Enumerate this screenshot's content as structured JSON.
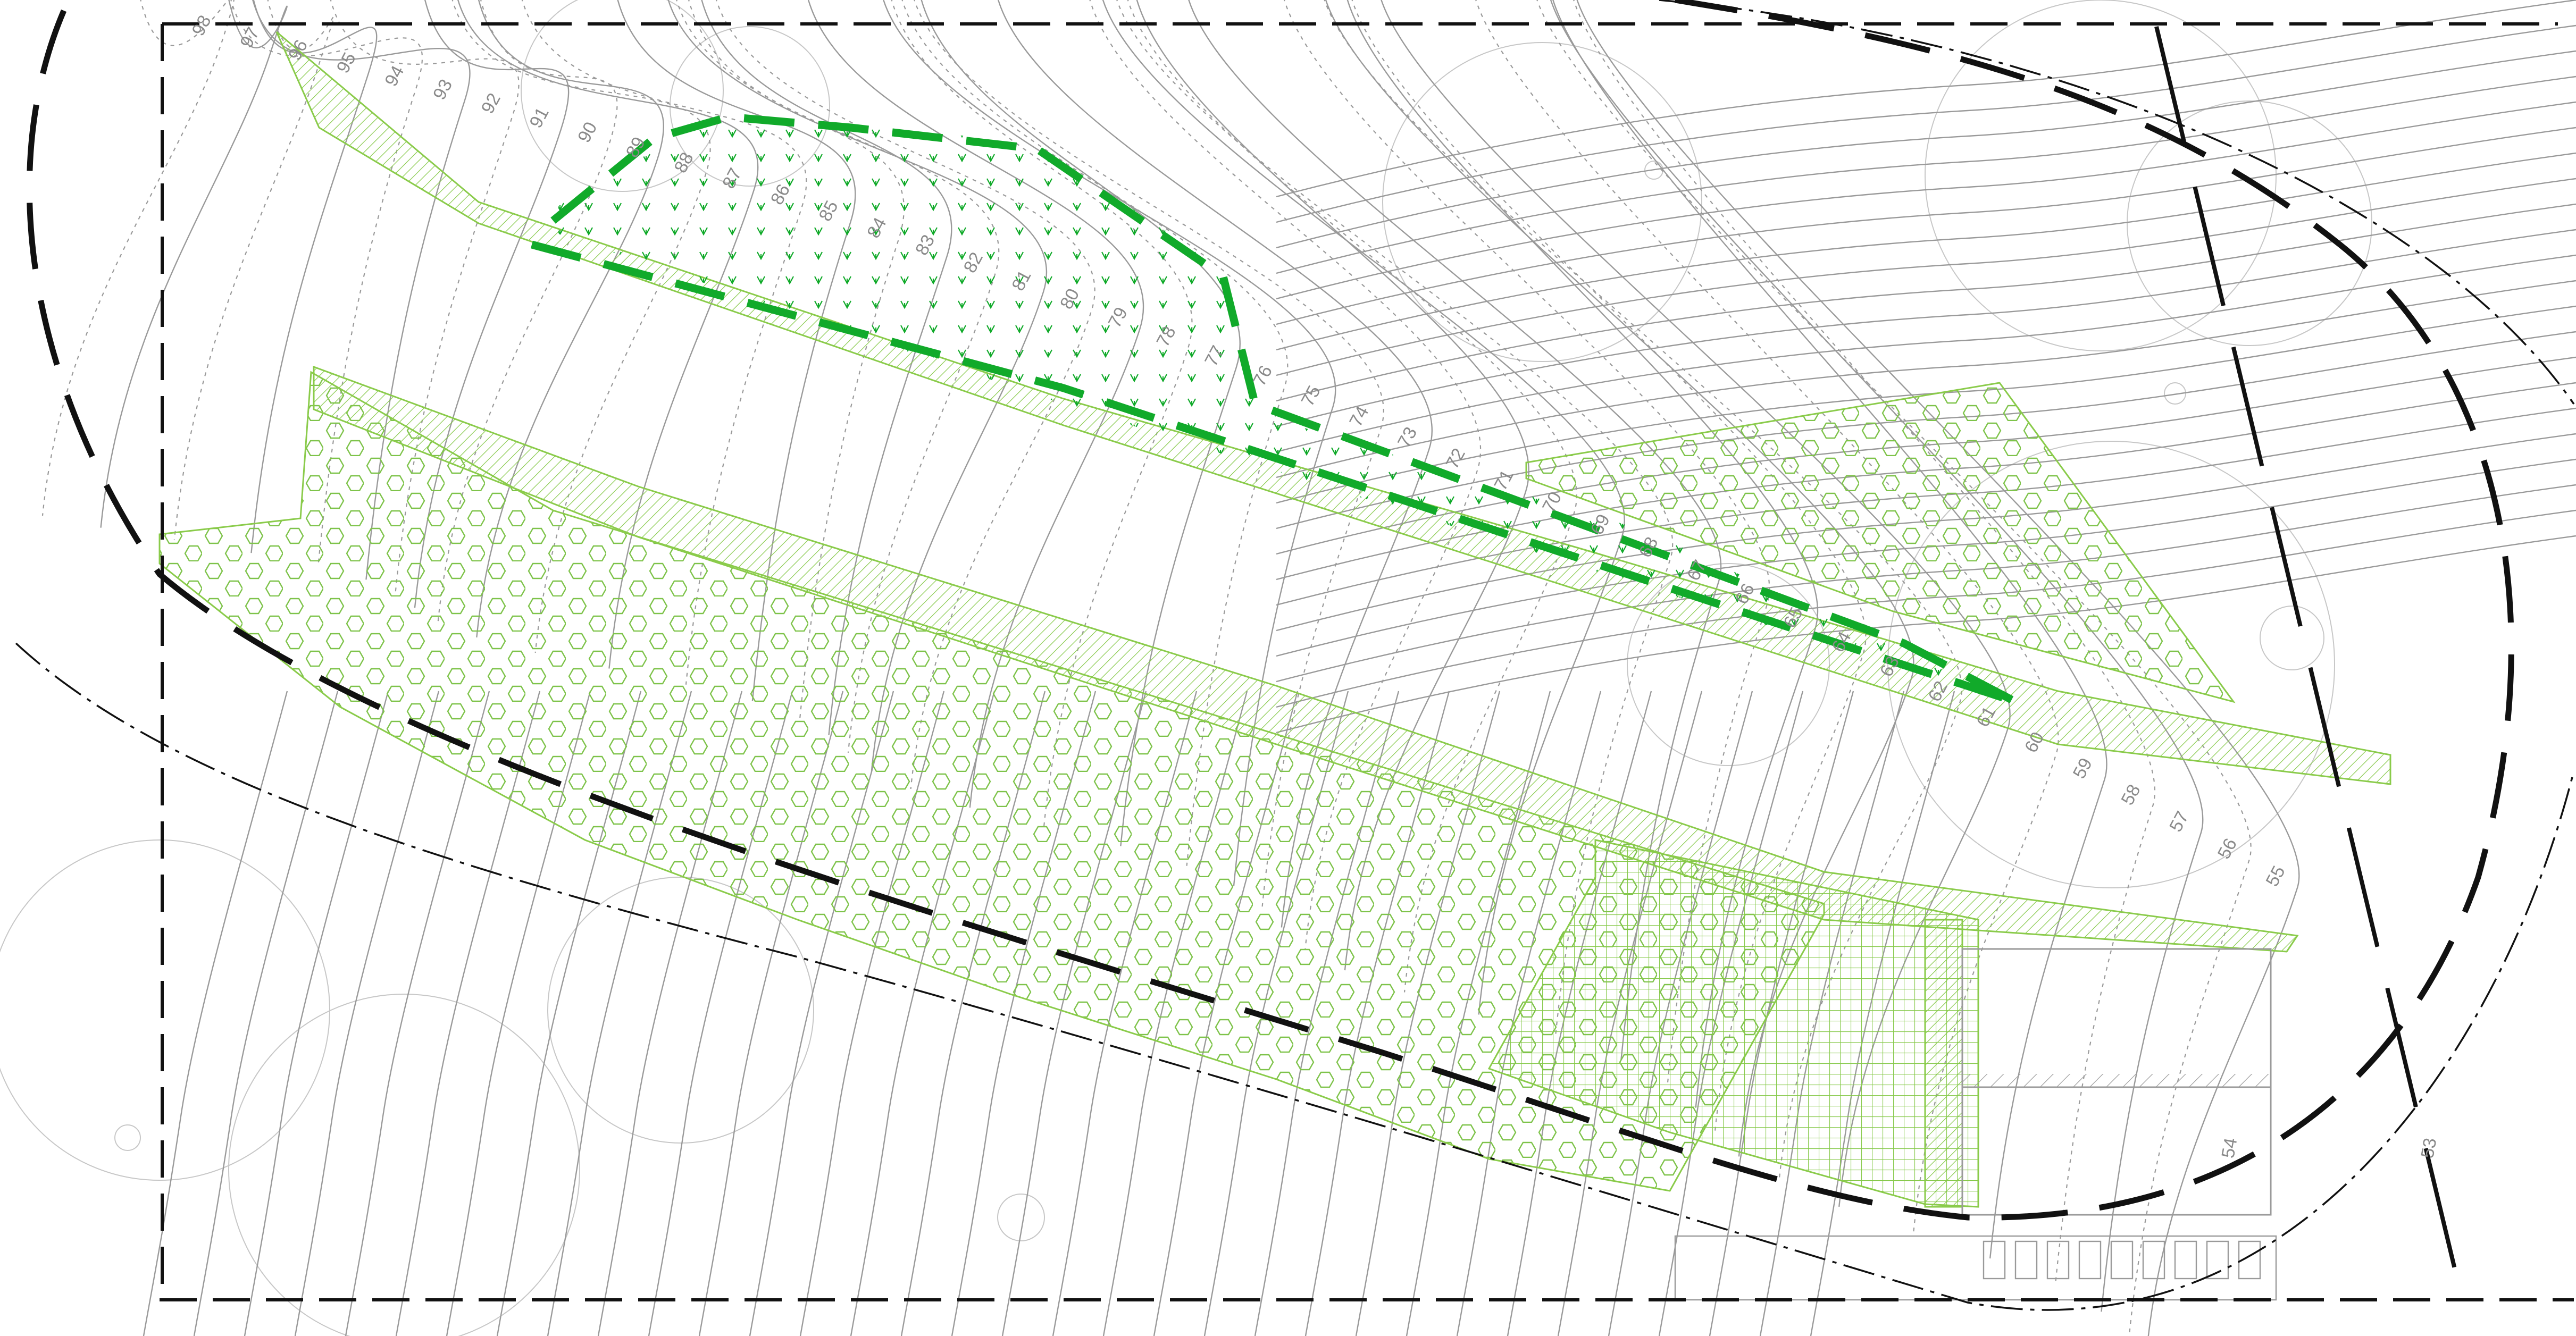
{
  "drawing": {
    "colors": {
      "contour": "#9a9a9a",
      "boundary": "#111111",
      "planting_outline": "#8acb4a",
      "hexagon_fill": "#7ec34a",
      "grid_fill": "#86c94a",
      "green_dashed_boundary": "#11aa2a"
    },
    "upper_contour_labels": [
      "98",
      "97",
      "96",
      "95",
      "94",
      "93",
      "92",
      "91",
      "90",
      "89",
      "88",
      "87",
      "86",
      "85",
      "84",
      "83",
      "82",
      "81",
      "80",
      "79",
      "78",
      "77",
      "76",
      "75",
      "74",
      "73",
      "72",
      "71",
      "70",
      "69",
      "68",
      "67",
      "66",
      "65",
      "64",
      "63",
      "62",
      "61",
      "60",
      "59",
      "58",
      "57",
      "56",
      "55"
    ],
    "extra_labels": [
      "54",
      "53"
    ],
    "hatch_patterns": {
      "bands": "diagonal-hatch",
      "meadow": "hexagon-pattern",
      "terrace": "grid-pattern",
      "grass": "arrow-symbol"
    }
  }
}
